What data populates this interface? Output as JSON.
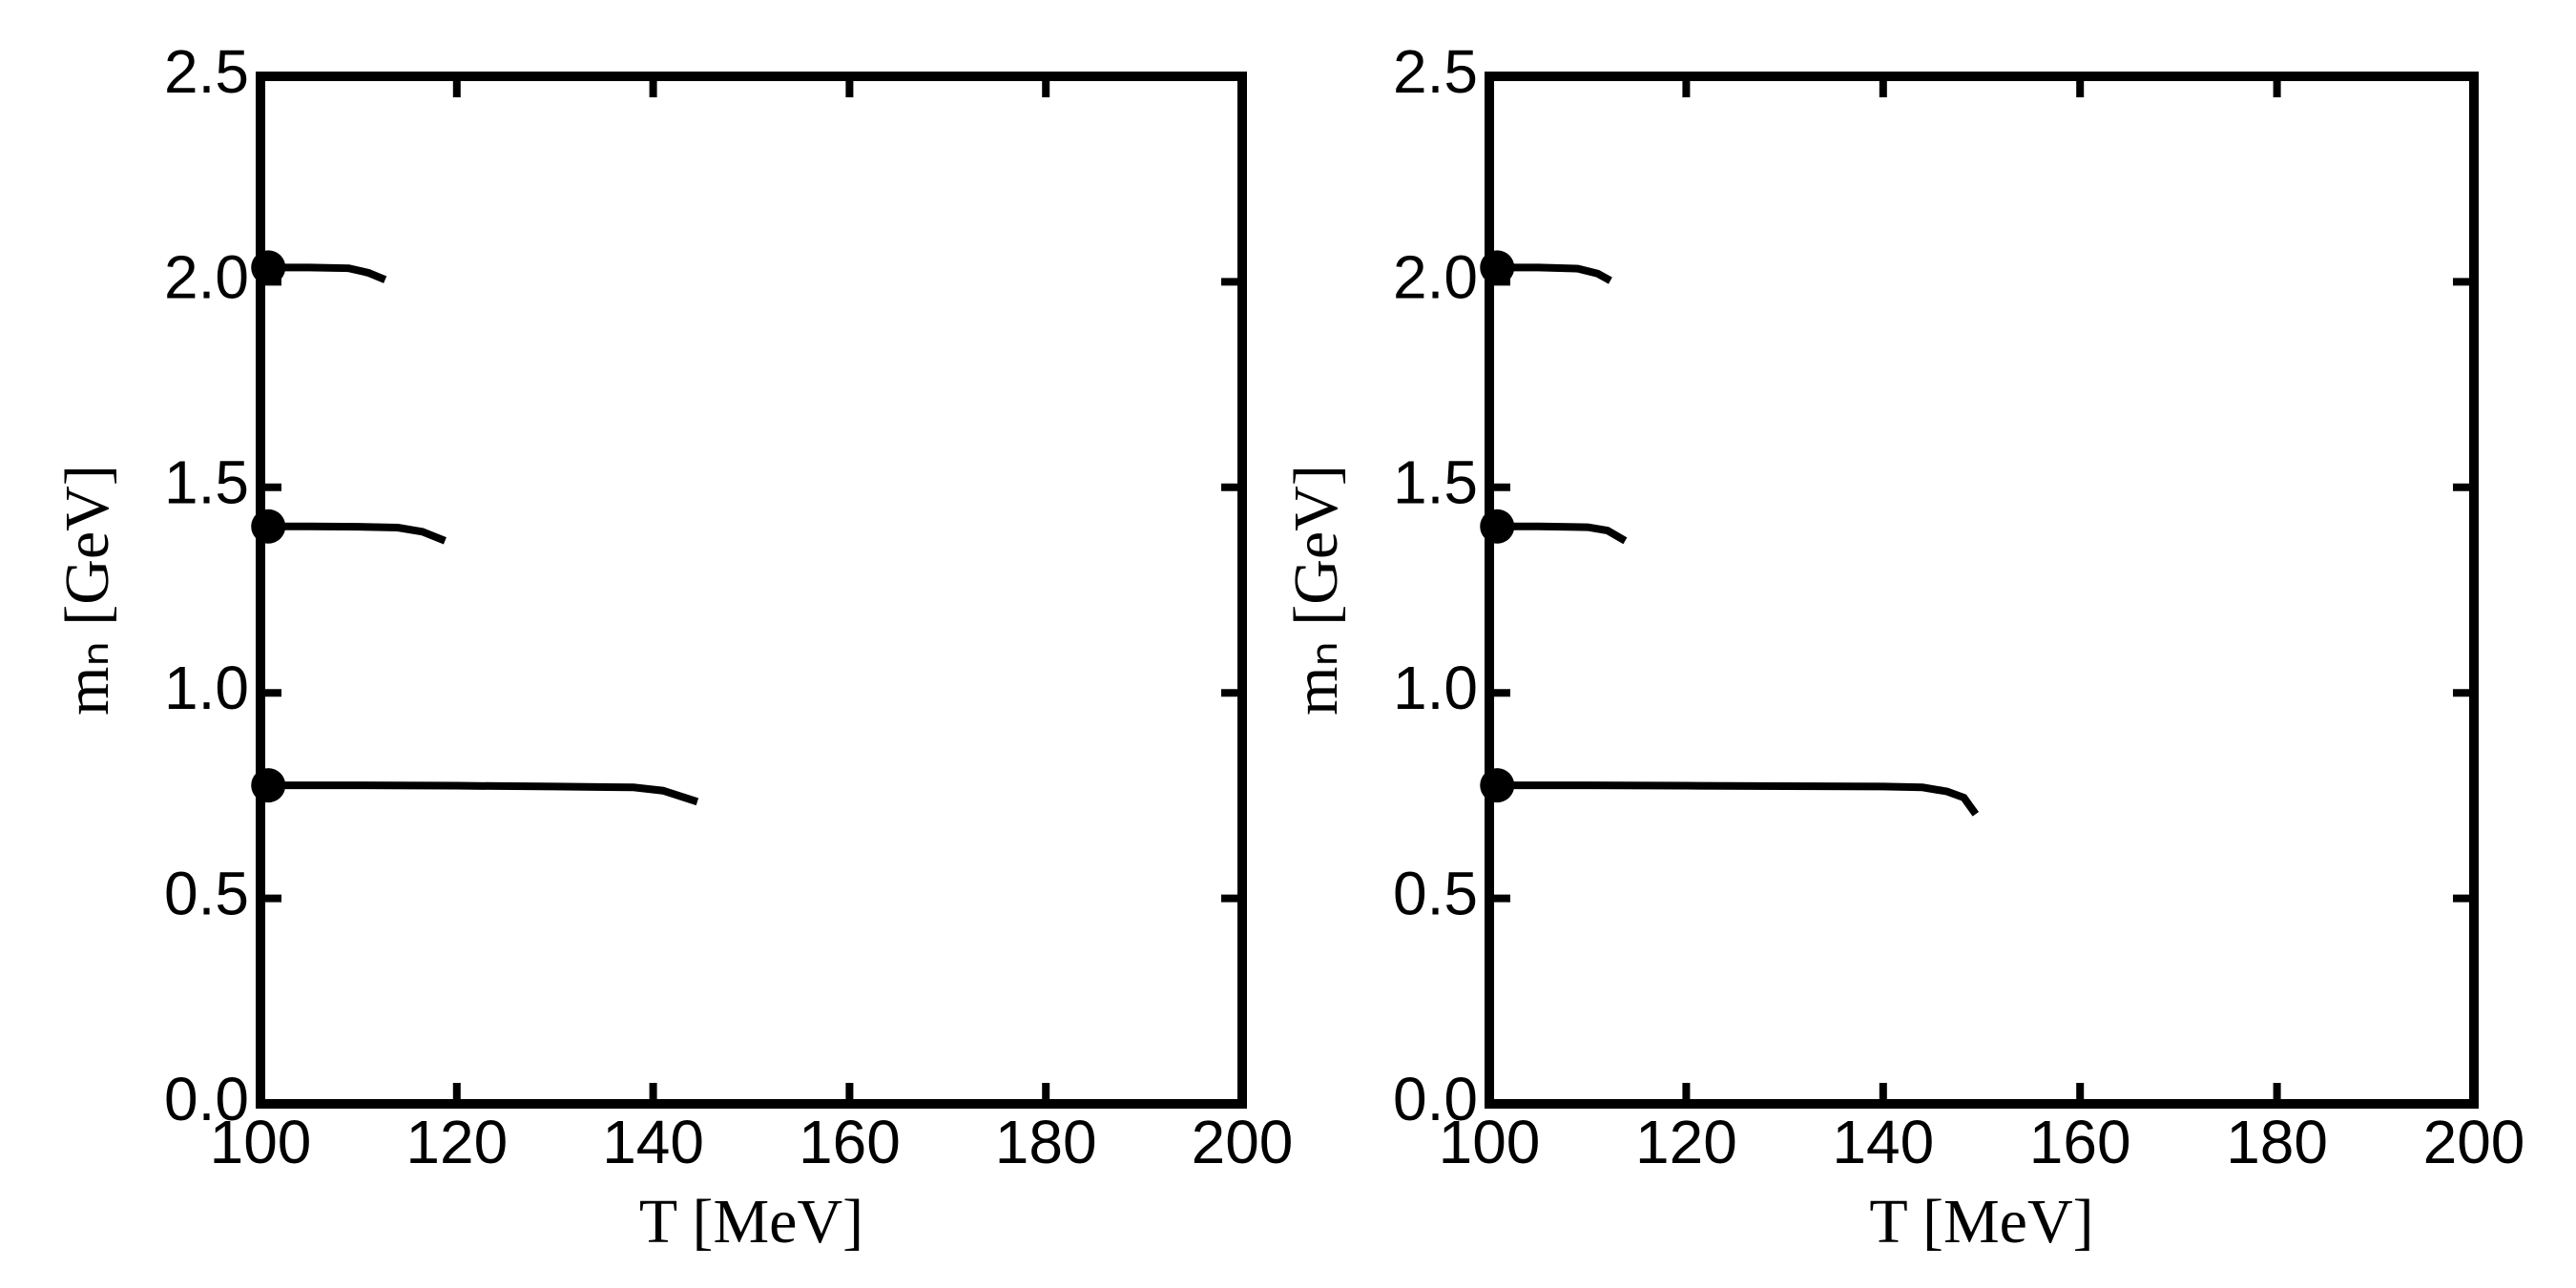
{
  "chart_data": [
    {
      "type": "line",
      "xlabel": "T [MeV]",
      "ylabel": "mₙ [GeV]",
      "xlim": [
        100,
        200
      ],
      "xticks": [
        100,
        120,
        140,
        160,
        180,
        200
      ],
      "ylim": [
        0,
        2.5
      ],
      "yticks": [
        {
          "value": 0,
          "label": "0.0"
        },
        0.5,
        {
          "value": 1,
          "label": "1.0"
        },
        1.5,
        {
          "value": 2,
          "label": "2.0"
        },
        2.5
      ],
      "marker_first": true,
      "series": [
        {
          "color": "#000000",
          "x": [
            100.8,
            110,
            120,
            130,
            138,
            141,
            144.5
          ],
          "values": [
            0.775,
            0.775,
            0.774,
            0.772,
            0.77,
            0.762,
            0.735
          ]
        },
        {
          "color": "#000000",
          "x": [
            100.8,
            105,
            110,
            114,
            116.5,
            118.8
          ],
          "values": [
            1.405,
            1.405,
            1.404,
            1.402,
            1.392,
            1.37
          ]
        },
        {
          "color": "#000000",
          "x": [
            100.8,
            105,
            109,
            111,
            112.7
          ],
          "values": [
            2.035,
            2.035,
            2.033,
            2.022,
            2.005
          ]
        }
      ]
    },
    {
      "type": "line",
      "xlabel": "T [MeV]",
      "ylabel": "mₙ [GeV]",
      "xlim": [
        100,
        200
      ],
      "xticks": [
        100,
        120,
        140,
        160,
        180,
        200
      ],
      "ylim": [
        0,
        2.5
      ],
      "yticks": [
        {
          "value": 0,
          "label": "0.0"
        },
        0.5,
        {
          "value": 1,
          "label": "1.0"
        },
        1.5,
        {
          "value": 2,
          "label": "2.0"
        },
        2.5
      ],
      "marker_first": true,
      "series": [
        {
          "color": "#000000",
          "x": [
            100.8,
            110,
            120,
            130,
            140,
            144,
            146.5,
            148.2,
            149.4
          ],
          "values": [
            0.775,
            0.775,
            0.774,
            0.773,
            0.772,
            0.77,
            0.76,
            0.745,
            0.705
          ]
        },
        {
          "color": "#000000",
          "x": [
            100.8,
            105,
            110,
            112,
            113.8
          ],
          "values": [
            1.405,
            1.405,
            1.403,
            1.395,
            1.37
          ]
        },
        {
          "color": "#000000",
          "x": [
            100.8,
            105,
            109,
            111,
            112.3
          ],
          "values": [
            2.035,
            2.035,
            2.032,
            2.02,
            2.003
          ]
        }
      ]
    }
  ]
}
